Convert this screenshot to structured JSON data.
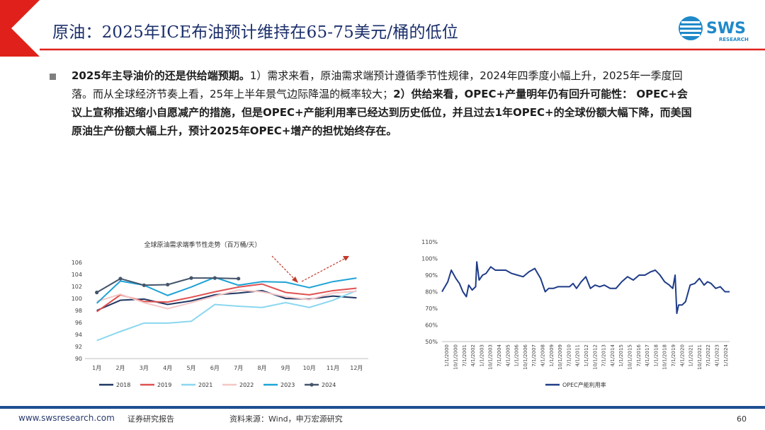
{
  "header": {
    "title": "原油：2025年ICE布油预计维持在65-75美元/桶的低位",
    "logo_text": "SWS",
    "logo_subtext": "RESEARCH"
  },
  "body": {
    "bold1": "2025年主导油价的还是供给端预期。",
    "text1": "1）需求来看，原油需求端预计遵循季节性规律，2024年四季度小幅上升，2025年一季度回落。而从全球经济节奏上看，25年上半年景气边际降温的概率较大；",
    "bold2": "2）供给来看，OPEC+产量明年仍有回升可能性： OPEC+会议上宣称推迟缩小自愿减产的措施，但是OPEC+产能利用率已经达到历史低位，并且过去1年OPEC+的全球份额大幅下降，而美国原油生产份额大幅上升，预计2025年OPEC+增产的担忧始终存在。"
  },
  "footer": {
    "url": "www.swsresearch.com",
    "type": "证券研究报告",
    "source": "资料来源：Wind，申万宏源研究",
    "page": "60"
  },
  "colors": {
    "accent_red": "#e0211b",
    "navy": "#1b2f6b",
    "footer_blue": "#1d4f91"
  },
  "chart_data": [
    {
      "type": "line",
      "title": "全球原油需求端季节性走势（百万桶/天）",
      "categories": [
        "1月",
        "2月",
        "3月",
        "4月",
        "5月",
        "6月",
        "7月",
        "8月",
        "9月",
        "10月",
        "11月",
        "12月"
      ],
      "ylim": [
        90,
        106
      ],
      "yticks": [
        90,
        92,
        94,
        96,
        98,
        100,
        102,
        104,
        106
      ],
      "legend_position": "bottom",
      "series": [
        {
          "name": "2018",
          "color": "#1f3864",
          "markers": false,
          "values": [
            98.0,
            99.7,
            99.9,
            99.0,
            99.6,
            100.6,
            100.9,
            101.3,
            100.0,
            99.9,
            100.4,
            100.1
          ]
        },
        {
          "name": "2019",
          "color": "#e05050",
          "markers": false,
          "values": [
            97.8,
            100.6,
            99.5,
            99.4,
            100.2,
            101.1,
            101.9,
            102.4,
            101.0,
            100.6,
            101.3,
            101.7
          ]
        },
        {
          "name": "2021",
          "color": "#8ad7f0",
          "markers": false,
          "values": [
            93.0,
            94.5,
            95.9,
            95.9,
            96.2,
            99.0,
            98.7,
            98.5,
            99.3,
            98.5,
            99.7,
            101.3
          ]
        },
        {
          "name": "2022",
          "color": "#f4c6c6",
          "markers": false,
          "values": [
            99.5,
            100.7,
            99.3,
            98.3,
            99.3,
            100.4,
            101.4,
            101.1,
            100.3,
            99.8,
            100.9,
            101.2
          ]
        },
        {
          "name": "2023",
          "color": "#1fa3d6",
          "markers": false,
          "values": [
            99.2,
            102.9,
            102.2,
            100.5,
            101.9,
            103.5,
            102.2,
            102.8,
            102.7,
            101.8,
            102.8,
            103.4
          ]
        },
        {
          "name": "2024",
          "color": "#44546a",
          "markers": true,
          "values": [
            101.0,
            103.3,
            102.2,
            102.3,
            103.4,
            103.4,
            103.3,
            null,
            null,
            null,
            null,
            null
          ]
        }
      ]
    },
    {
      "type": "line",
      "x_tick_labels": [
        "1/1/2000",
        "10/1/2000",
        "7/1/2001",
        "4/1/2002",
        "1/1/2003",
        "10/1/2003",
        "7/1/2004",
        "4/1/2005",
        "1/1/2006",
        "10/1/2006",
        "7/1/2007",
        "4/1/2008",
        "1/1/2009",
        "10/1/2009",
        "7/1/2010",
        "4/1/2011",
        "1/1/2012",
        "10/1/2012",
        "7/1/2013",
        "4/1/2014",
        "1/1/2015",
        "10/1/2015",
        "7/1/2016",
        "4/1/2017",
        "1/1/2018",
        "10/1/2018",
        "7/1/2019",
        "4/1/2020",
        "1/1/2021",
        "10/1/2021",
        "7/1/2022",
        "4/1/2023",
        "1/1/2024"
      ],
      "ylim": [
        50,
        110
      ],
      "yticks": [
        "50%",
        "60%",
        "70%",
        "80%",
        "90%",
        "100%",
        "110%"
      ],
      "legend_position": "bottom",
      "series": [
        {
          "name": "OPEC产能利用率",
          "color": "#1f3c88",
          "x_year": [
            2000.0,
            2000.5,
            2000.8,
            2001.2,
            2001.5,
            2001.8,
            2002.1,
            2002.3,
            2002.6,
            2002.9,
            2003.0,
            2003.2,
            2003.5,
            2003.8,
            2004.2,
            2004.6,
            2005.0,
            2005.5,
            2006.0,
            2006.5,
            2007.0,
            2007.5,
            2008.0,
            2008.5,
            2008.9,
            2009.2,
            2009.6,
            2010.0,
            2010.5,
            2011.0,
            2011.3,
            2011.6,
            2012.0,
            2012.4,
            2012.8,
            2013.2,
            2013.6,
            2014.0,
            2014.5,
            2015.0,
            2015.5,
            2016.0,
            2016.5,
            2017.0,
            2017.5,
            2018.0,
            2018.4,
            2018.8,
            2019.2,
            2019.6,
            2019.9,
            2020.1,
            2020.25,
            2020.4,
            2020.7,
            2021.0,
            2021.4,
            2021.8,
            2022.2,
            2022.6,
            2022.9,
            2023.2,
            2023.6,
            2024.0,
            2024.4,
            2024.8
          ],
          "values": [
            80,
            86,
            93,
            88,
            85,
            80,
            77,
            84,
            81,
            83,
            98,
            87,
            90,
            91,
            95,
            93,
            93,
            93,
            91,
            90,
            89,
            92,
            94,
            88,
            80,
            82,
            82,
            83,
            83,
            83,
            85,
            82,
            86,
            89,
            82,
            84,
            83,
            84,
            82,
            82,
            86,
            89,
            87,
            90,
            90,
            92,
            93,
            90,
            86,
            84,
            82,
            90,
            67,
            72,
            72,
            74,
            84,
            85,
            88,
            84,
            86,
            85,
            82,
            83,
            80,
            80
          ]
        }
      ]
    }
  ]
}
